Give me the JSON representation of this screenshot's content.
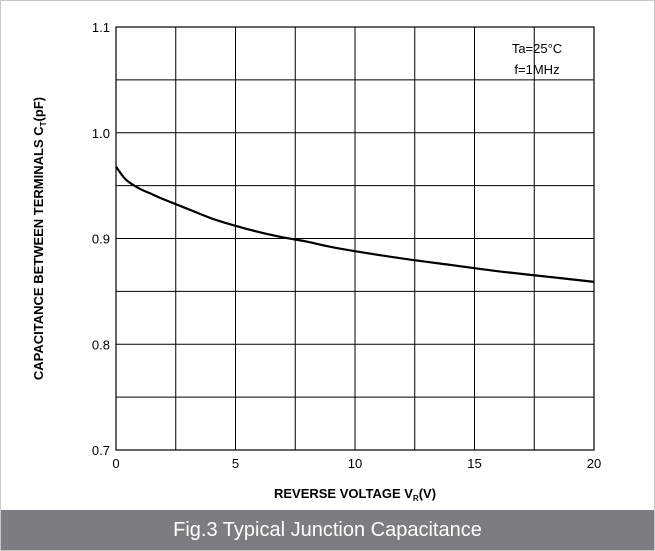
{
  "caption": "Fig.3 Typical Junction Capacitance",
  "chart_data": {
    "type": "line",
    "title": "",
    "xlabel_main": "REVERSE VOLTAGE  V",
    "xlabel_sub": "R",
    "xlabel_unit": "(V)",
    "ylabel_main": "CAPACITANCE BETWEEN TERMINALS  C",
    "ylabel_sub": "T",
    "ylabel_unit": "(pF)",
    "xlim": [
      0,
      20
    ],
    "ylim": [
      0.7,
      1.1
    ],
    "x_ticks": [
      "0",
      "5",
      "10",
      "15",
      "20"
    ],
    "x_tick_values": [
      0,
      5,
      10,
      15,
      20
    ],
    "y_ticks": [
      "0.7",
      "0.8",
      "0.9",
      "1.0",
      "1.1"
    ],
    "y_tick_values": [
      0.7,
      0.8,
      0.9,
      1.0,
      1.1
    ],
    "x_grid_values": [
      0,
      2.5,
      5,
      7.5,
      10,
      12.5,
      15,
      17.5,
      20
    ],
    "y_grid_values": [
      0.7,
      0.75,
      0.8,
      0.85,
      0.9,
      0.95,
      1.0,
      1.05,
      1.1
    ],
    "grid": true,
    "annotations": [
      "Ta=25°C",
      "f=1MHz"
    ],
    "series": [
      {
        "x": [
          0,
          0.25,
          0.5,
          1,
          1.5,
          2,
          3,
          4,
          5,
          6,
          7,
          7.5,
          8,
          9,
          10,
          12,
          14,
          16,
          18,
          20
        ],
        "values": [
          0.968,
          0.96,
          0.954,
          0.947,
          0.942,
          0.937,
          0.928,
          0.919,
          0.912,
          0.906,
          0.901,
          0.899,
          0.897,
          0.892,
          0.888,
          0.881,
          0.875,
          0.869,
          0.864,
          0.859
        ]
      }
    ],
    "line_color": "#000000"
  }
}
